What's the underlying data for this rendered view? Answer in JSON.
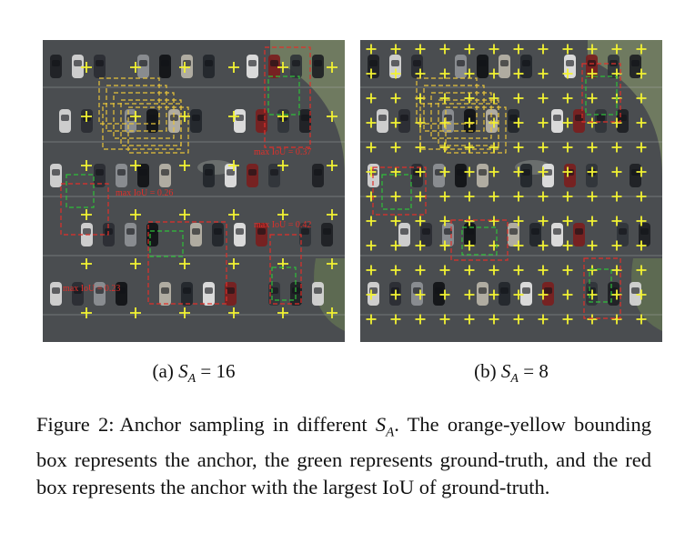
{
  "figure": {
    "panels": [
      {
        "id": "a",
        "sub_caption_prefix": "(a)",
        "sub_caption_var": "S",
        "sub_caption_sub": "A",
        "sub_caption_rhs": "= 16",
        "iou_labels": [
          "max IoU = 0.37",
          "max IoU = 0.26",
          "max IoU = 0.42",
          "max IoU = 0.23"
        ]
      },
      {
        "id": "b",
        "sub_caption_prefix": "(b)",
        "sub_caption_var": "S",
        "sub_caption_sub": "A",
        "sub_caption_rhs": "= 8",
        "iou_labels": []
      }
    ],
    "caption_label": "Figure 2:",
    "caption_text": "Anchor sampling in different S_A. The orange-yellow bounding box represents the anchor, the green represents ground-truth, and the red box represents the anchor with the largest IoU of ground-truth.",
    "caption_parts": {
      "before": "Anchor sampling in different",
      "var": "S",
      "sub": "A",
      "after": ". The orange-yellow bounding box represents the anchor, the green represents ground-truth, and the red box represents the anchor with the largest IoU of ground-truth."
    },
    "colors": {
      "anchor": "#e8c43a",
      "ground_truth": "#2fbf3a",
      "max_iou": "#e0302a",
      "anchor_point": "#f2f232",
      "asphalt": "#4a4d50"
    }
  }
}
